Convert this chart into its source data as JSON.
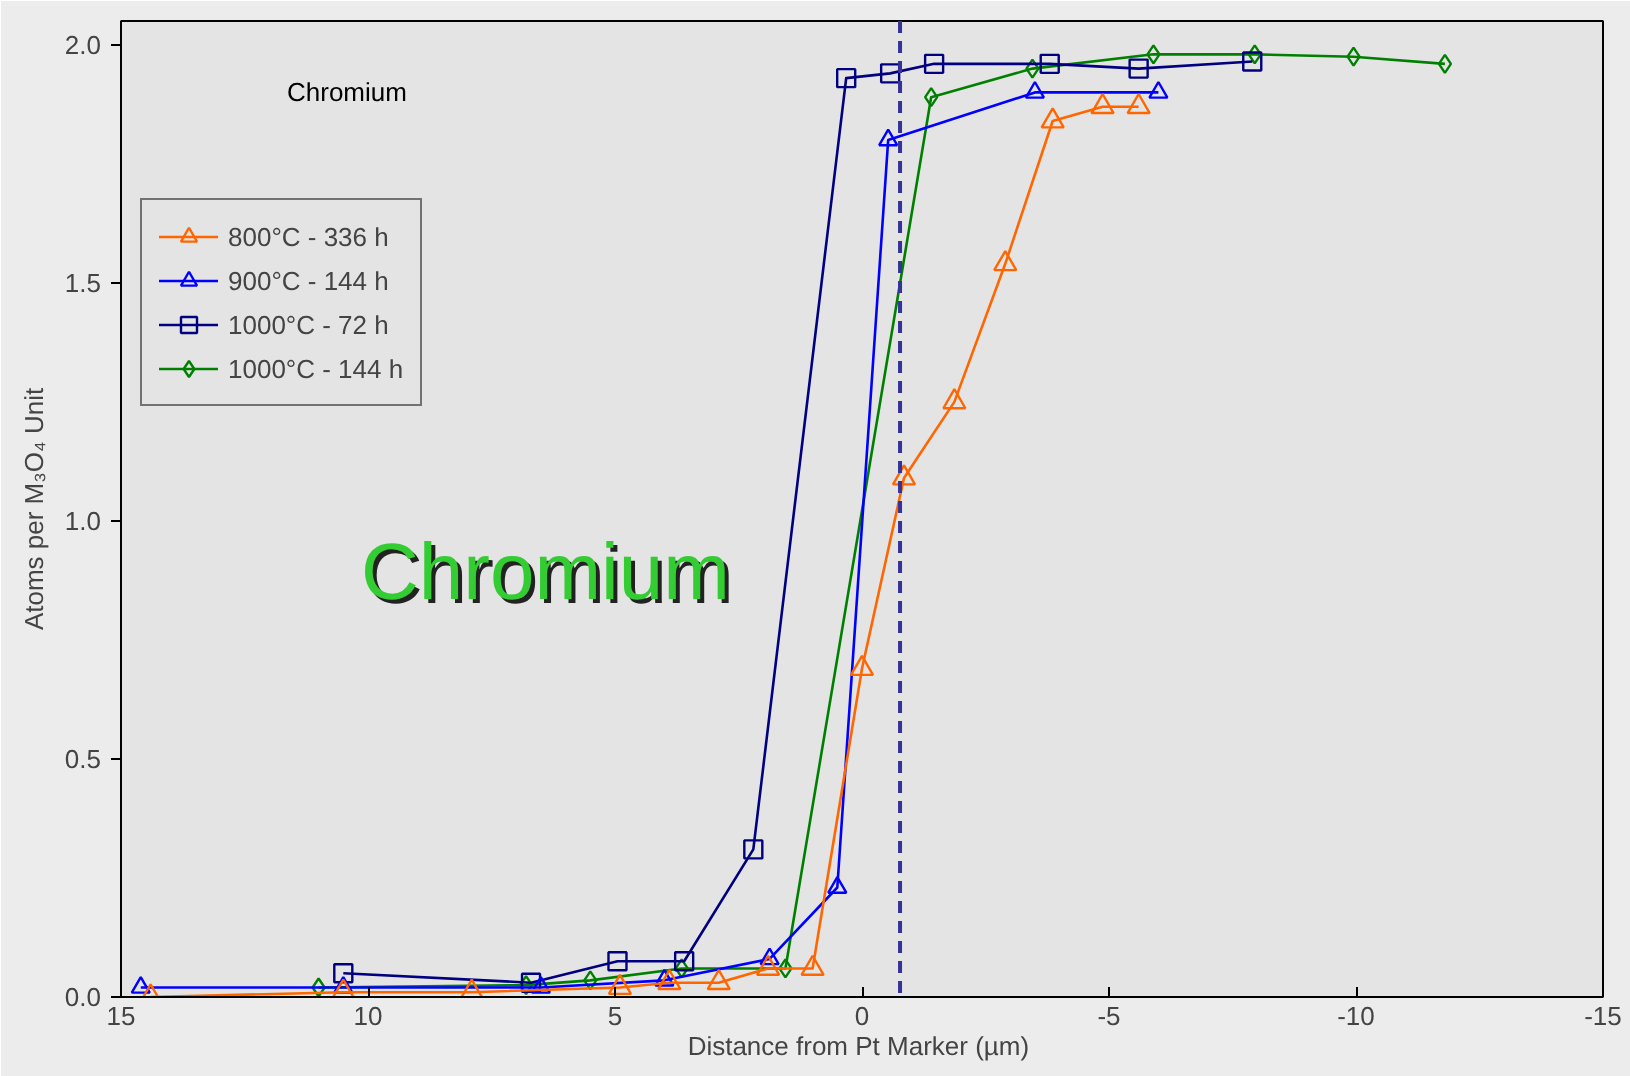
{
  "chart_data": {
    "type": "line",
    "xlabel": "Distance from Pt Marker  (µm)",
    "ylabel": "Atoms per M₃O₄ Unit",
    "xlim": [
      15,
      -15
    ],
    "xticks": [
      15,
      10,
      5,
      0,
      -5,
      -10,
      -15
    ],
    "ylim": [
      0,
      2.05
    ],
    "yticks": [
      {
        "value": 0,
        "label": "0.0"
      },
      0.5,
      {
        "value": 1,
        "label": "1.0"
      },
      1.5,
      {
        "value": 2,
        "label": "2.0"
      }
    ],
    "grid": false,
    "legend": "top left",
    "line_style": "solid",
    "annotations": [
      "Chromium",
      "Chromium"
    ],
    "ref_lines": [
      {
        "axis": "x",
        "value": -0.77,
        "label": null,
        "color": "#333399",
        "line_style": "dashed"
      }
    ],
    "series": [
      {
        "name": "800°C - 336 h",
        "color": "#ff6600",
        "marker": "triangle",
        "x": [
          14.4,
          10.5,
          7.9,
          4.9,
          3.9,
          2.9,
          1.9,
          1.0,
          0.0,
          -0.85,
          -1.87,
          -2.9,
          -3.86,
          -4.87,
          -5.6
        ],
        "values": [
          0.0,
          0.01,
          0.01,
          0.02,
          0.03,
          0.03,
          0.06,
          0.06,
          0.69,
          1.09,
          1.25,
          1.54,
          1.84,
          1.87,
          1.87
        ]
      },
      {
        "name": "900°C - 144 h",
        "color": "#0000ff",
        "marker": "triangle",
        "x": [
          14.6,
          10.5,
          6.5,
          4.0,
          1.87,
          0.5,
          -0.53,
          -3.5,
          -6.0
        ],
        "values": [
          0.02,
          0.02,
          0.02,
          0.035,
          0.08,
          0.23,
          1.8,
          1.9,
          1.9
        ]
      },
      {
        "name": "1000°C - 72 h",
        "color": "#000080",
        "marker": "square",
        "x": [
          10.5,
          6.7,
          4.95,
          3.6,
          2.2,
          0.32,
          -0.57,
          -1.46,
          -3.8,
          -5.6,
          -7.9
        ],
        "values": [
          0.05,
          0.03,
          0.075,
          0.075,
          0.31,
          1.93,
          1.94,
          1.96,
          1.96,
          1.95,
          1.965
        ]
      },
      {
        "name": "1000°C - 144 h",
        "color": "#008000",
        "marker": "diamond",
        "x": [
          11.0,
          6.8,
          5.5,
          3.65,
          1.55,
          -1.4,
          -3.45,
          -5.9,
          -7.95,
          -9.95,
          -11.8
        ],
        "values": [
          0.02,
          0.025,
          0.035,
          0.06,
          0.06,
          1.89,
          1.95,
          1.98,
          1.98,
          1.975,
          1.96
        ]
      }
    ]
  }
}
